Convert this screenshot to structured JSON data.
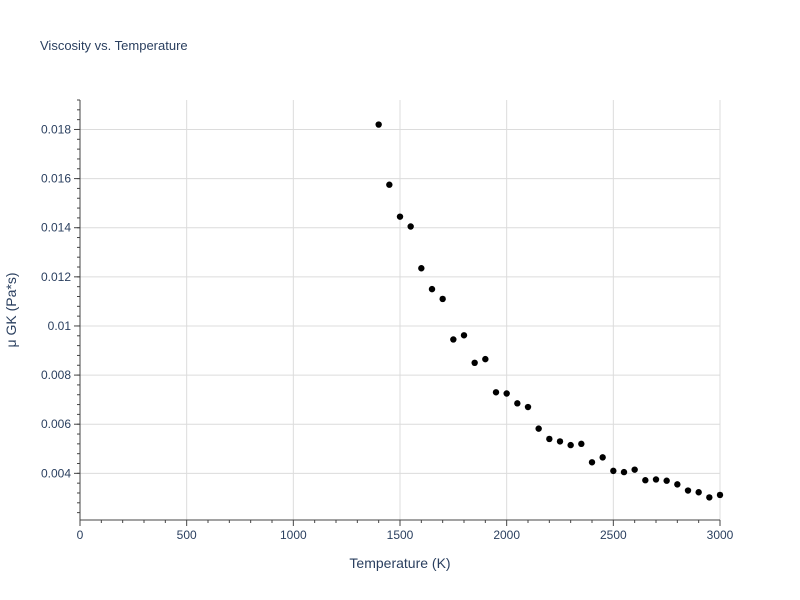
{
  "chart_data": {
    "type": "scatter",
    "title": "Viscosity vs. Temperature",
    "xlabel": "Temperature (K)",
    "ylabel": "μ GK (Pa*s)",
    "xlim": [
      0,
      3000
    ],
    "ylim": [
      0.0021,
      0.0192
    ],
    "grid": true,
    "x_ticks": [
      {
        "value": 0,
        "label": "0"
      },
      {
        "value": 500,
        "label": "500"
      },
      {
        "value": 1000,
        "label": "1000"
      },
      {
        "value": 1500,
        "label": "1500"
      },
      {
        "value": 2000,
        "label": "2000"
      },
      {
        "value": 2500,
        "label": "2500"
      },
      {
        "value": 3000,
        "label": "3000"
      }
    ],
    "y_ticks": [
      {
        "value": 0.004,
        "label": "0.004"
      },
      {
        "value": 0.006,
        "label": "0.006"
      },
      {
        "value": 0.008,
        "label": "0.008"
      },
      {
        "value": 0.01,
        "label": "0.01"
      },
      {
        "value": 0.012,
        "label": "0.012"
      },
      {
        "value": 0.014,
        "label": "0.014"
      },
      {
        "value": 0.016,
        "label": "0.016"
      },
      {
        "value": 0.018,
        "label": "0.018"
      }
    ],
    "marker_color": "#000000",
    "points": [
      {
        "x": 1400,
        "y": 0.0182
      },
      {
        "x": 1450,
        "y": 0.01575
      },
      {
        "x": 1500,
        "y": 0.01445
      },
      {
        "x": 1550,
        "y": 0.01405
      },
      {
        "x": 1600,
        "y": 0.01235
      },
      {
        "x": 1650,
        "y": 0.0115
      },
      {
        "x": 1700,
        "y": 0.0111
      },
      {
        "x": 1750,
        "y": 0.00945
      },
      {
        "x": 1800,
        "y": 0.00962
      },
      {
        "x": 1850,
        "y": 0.0085
      },
      {
        "x": 1900,
        "y": 0.00865
      },
      {
        "x": 1950,
        "y": 0.0073
      },
      {
        "x": 2000,
        "y": 0.00725
      },
      {
        "x": 2050,
        "y": 0.00685
      },
      {
        "x": 2100,
        "y": 0.0067
      },
      {
        "x": 2150,
        "y": 0.00582
      },
      {
        "x": 2200,
        "y": 0.0054
      },
      {
        "x": 2250,
        "y": 0.0053
      },
      {
        "x": 2300,
        "y": 0.00515
      },
      {
        "x": 2350,
        "y": 0.0052
      },
      {
        "x": 2400,
        "y": 0.00445
      },
      {
        "x": 2450,
        "y": 0.00465
      },
      {
        "x": 2500,
        "y": 0.0041
      },
      {
        "x": 2550,
        "y": 0.00405
      },
      {
        "x": 2600,
        "y": 0.00415
      },
      {
        "x": 2650,
        "y": 0.00372
      },
      {
        "x": 2700,
        "y": 0.00375
      },
      {
        "x": 2750,
        "y": 0.0037
      },
      {
        "x": 2800,
        "y": 0.00355
      },
      {
        "x": 2850,
        "y": 0.0033
      },
      {
        "x": 2900,
        "y": 0.00323
      },
      {
        "x": 2950,
        "y": 0.00302
      },
      {
        "x": 3000,
        "y": 0.00312
      }
    ]
  }
}
